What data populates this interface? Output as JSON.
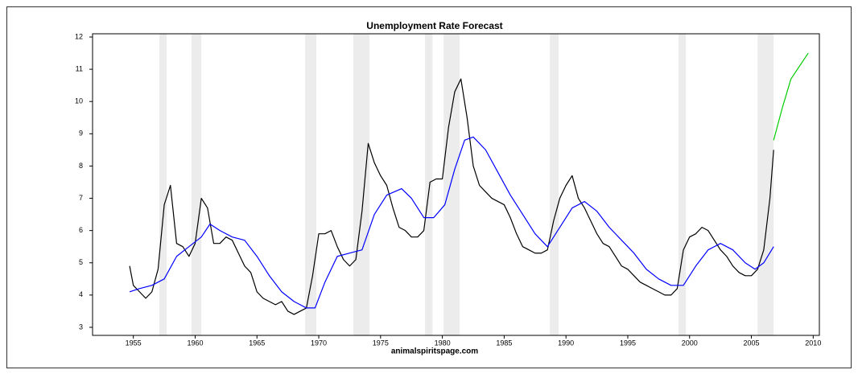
{
  "chart_data": {
    "type": "line",
    "title": "Unemployment Rate Forecast",
    "x_label": "animalspiritspage.com",
    "xlim": [
      1951.7,
      2010.5
    ],
    "xticks": [
      1955,
      1960,
      1965,
      1970,
      1975,
      1980,
      1985,
      1990,
      1995,
      2000,
      2005,
      2010
    ],
    "ylim": [
      2.75,
      12.1
    ],
    "yticks": [
      3,
      4,
      5,
      6,
      7,
      8,
      9,
      10,
      11,
      12
    ],
    "shaded_regions": [
      [
        1957.1,
        1957.7
      ],
      [
        1959.7,
        1960.5
      ],
      [
        1968.9,
        1969.8
      ],
      [
        1972.8,
        1974.1
      ],
      [
        1978.6,
        1979.2
      ],
      [
        1980.1,
        1981.4
      ],
      [
        1988.7,
        1989.4
      ],
      [
        1999.1,
        1999.7
      ],
      [
        2005.5,
        2006.8
      ]
    ],
    "shade_color": "#ececec",
    "series": [
      {
        "color": "#000000",
        "x": [
          1954.7,
          1955.0,
          1955.5,
          1956.0,
          1956.5,
          1957.0,
          1957.5,
          1958.0,
          1958.5,
          1959.0,
          1959.5,
          1960.0,
          1960.5,
          1961.0,
          1961.5,
          1962.0,
          1962.5,
          1963.0,
          1963.5,
          1964.0,
          1964.5,
          1965.0,
          1965.5,
          1966.0,
          1966.5,
          1967.0,
          1967.5,
          1968.0,
          1968.5,
          1969.0,
          1969.5,
          1970.0,
          1970.5,
          1971.0,
          1971.5,
          1972.0,
          1972.5,
          1973.0,
          1973.5,
          1974.0,
          1974.5,
          1975.0,
          1975.5,
          1976.0,
          1976.5,
          1977.0,
          1977.5,
          1978.0,
          1978.5,
          1979.0,
          1979.5,
          1980.0,
          1980.5,
          1981.0,
          1981.5,
          1982.0,
          1982.5,
          1983.0,
          1983.5,
          1984.0,
          1984.5,
          1985.0,
          1985.5,
          1986.0,
          1986.5,
          1987.0,
          1987.5,
          1988.0,
          1988.5,
          1989.0,
          1989.5,
          1990.0,
          1990.5,
          1991.0,
          1991.5,
          1992.0,
          1992.5,
          1993.0,
          1993.5,
          1994.0,
          1994.5,
          1995.0,
          1995.5,
          1996.0,
          1996.5,
          1997.0,
          1997.5,
          1998.0,
          1998.5,
          1999.0,
          1999.5,
          2000.0,
          2000.5,
          2001.0,
          2001.5,
          2002.0,
          2002.5,
          2003.0,
          2003.5,
          2004.0,
          2004.5,
          2005.0,
          2005.5,
          2006.0,
          2006.5,
          2006.8
        ],
        "values": [
          4.9,
          4.3,
          4.1,
          3.9,
          4.1,
          4.8,
          6.8,
          7.4,
          5.6,
          5.5,
          5.2,
          5.6,
          7.0,
          6.7,
          5.6,
          5.6,
          5.8,
          5.7,
          5.3,
          4.9,
          4.7,
          4.1,
          3.9,
          3.8,
          3.7,
          3.8,
          3.5,
          3.4,
          3.5,
          3.6,
          4.6,
          5.9,
          5.9,
          6.0,
          5.5,
          5.1,
          4.9,
          5.1,
          6.6,
          8.7,
          8.1,
          7.7,
          7.4,
          6.7,
          6.1,
          6.0,
          5.8,
          5.8,
          6.0,
          7.5,
          7.6,
          7.6,
          9.2,
          10.3,
          10.7,
          9.5,
          8.0,
          7.4,
          7.2,
          7.0,
          6.9,
          6.8,
          6.4,
          5.9,
          5.5,
          5.4,
          5.3,
          5.3,
          5.4,
          6.3,
          7.0,
          7.4,
          7.7,
          7.0,
          6.7,
          6.3,
          5.9,
          5.6,
          5.5,
          5.2,
          4.9,
          4.8,
          4.6,
          4.4,
          4.3,
          4.2,
          4.1,
          4.0,
          4.0,
          4.2,
          5.4,
          5.8,
          5.9,
          6.1,
          6.0,
          5.7,
          5.4,
          5.2,
          4.9,
          4.7,
          4.6,
          4.6,
          4.8,
          5.4,
          7.0,
          8.5
        ]
      },
      {
        "color": "#0000ff",
        "x": [
          1954.7,
          1955.5,
          1956.5,
          1957.5,
          1958.5,
          1959.5,
          1960.5,
          1961.2,
          1962,
          1963,
          1964,
          1965,
          1966,
          1967,
          1968,
          1969,
          1969.7,
          1970.5,
          1971.5,
          1972.5,
          1973.5,
          1974.5,
          1975.5,
          1976.7,
          1977.5,
          1978.5,
          1979.3,
          1980.2,
          1981,
          1981.8,
          1982.5,
          1983.5,
          1984.5,
          1985.5,
          1986.5,
          1987.5,
          1988.5,
          1989.5,
          1990.5,
          1991.5,
          1992.5,
          1993.5,
          1994.5,
          1995.5,
          1996.5,
          1997.5,
          1998.5,
          1999.5,
          2000.5,
          2001.5,
          2002.5,
          2003.5,
          2004.5,
          2005.3,
          2006,
          2006.8
        ],
        "values": [
          4.1,
          4.2,
          4.3,
          4.5,
          5.2,
          5.5,
          5.8,
          6.2,
          6.0,
          5.8,
          5.7,
          5.2,
          4.6,
          4.1,
          3.8,
          3.6,
          3.6,
          4.4,
          5.2,
          5.3,
          5.4,
          6.5,
          7.1,
          7.3,
          7.0,
          6.4,
          6.4,
          6.8,
          7.9,
          8.8,
          8.9,
          8.5,
          7.8,
          7.1,
          6.5,
          5.9,
          5.5,
          6.1,
          6.7,
          6.9,
          6.6,
          6.1,
          5.7,
          5.3,
          4.8,
          4.5,
          4.3,
          4.3,
          4.9,
          5.4,
          5.6,
          5.4,
          5.0,
          4.8,
          5.0,
          5.5
        ]
      },
      {
        "color": "#00cc00",
        "x": [
          2006.8,
          2007.5,
          2008.2,
          2009.6
        ],
        "values": [
          8.8,
          9.8,
          10.7,
          11.5
        ]
      }
    ]
  }
}
